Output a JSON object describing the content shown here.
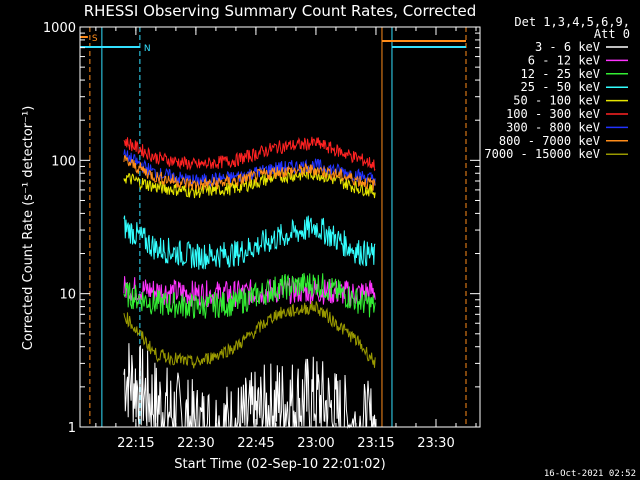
{
  "chart_data": {
    "type": "line",
    "title": "RHESSI Observing Summary Count Rates, Corrected",
    "xlabel": "Start Time (02-Sep-10 22:01:02)",
    "ylabel": "Corrected Count Rate (s⁻¹ detector⁻¹)",
    "yscale": "log",
    "ylim": [
      1,
      1000
    ],
    "xlim": [
      "22:01:02",
      "23:41:00"
    ],
    "x_ticks": [
      "22:15",
      "22:30",
      "22:45",
      "23:00",
      "23:15",
      "23:30"
    ],
    "y_ticks": [
      "1",
      "10",
      "100",
      "1000"
    ],
    "grid": false,
    "legend_placement": "right",
    "legend_header": [
      "Det 1,3,4,5,6,9,",
      "Att 0"
    ],
    "timestamp": "16-Oct-2021 02:52",
    "flags": [
      {
        "label": "S",
        "color": "#ff8c1a",
        "x_start": "22:01:02",
        "x_end": "22:03:00"
      },
      {
        "label": "N",
        "color": "#33e0ff",
        "x_start": "22:01:02",
        "x_end": "22:16:00"
      }
    ],
    "vertical_markers": [
      {
        "x": "22:03:30",
        "color": "#ff8c1a",
        "style": "dashed"
      },
      {
        "x": "22:06:30",
        "color": "#33e0ff",
        "style": "solid"
      },
      {
        "x": "22:16:00",
        "color": "#33e0ff",
        "style": "dashed"
      },
      {
        "x": "23:16:30",
        "color": "#ff8c1a",
        "style": "solid"
      },
      {
        "x": "23:19:00",
        "color": "#33e0ff",
        "style": "solid"
      },
      {
        "x": "23:37:30",
        "color": "#ff8c1a",
        "style": "dashed"
      }
    ],
    "series": [
      {
        "name": "3 - 6 keV",
        "color": "#ffffff",
        "x": [
          "22:12",
          "22:20",
          "22:30",
          "22:40",
          "22:50",
          "23:00",
          "23:10",
          "23:15"
        ],
        "values": [
          2.5,
          1.5,
          1,
          1,
          1.5,
          1.6,
          1,
          1
        ]
      },
      {
        "name": "6 - 12 keV",
        "color": "#ff33ff",
        "x": [
          "22:12",
          "22:20",
          "22:30",
          "22:40",
          "22:50",
          "23:00",
          "23:10",
          "23:15"
        ],
        "values": [
          11,
          10.5,
          10,
          10,
          10.5,
          10.5,
          10,
          10.5
        ]
      },
      {
        "name": "12 - 25 keV",
        "color": "#33ee33",
        "x": [
          "22:12",
          "22:20",
          "22:30",
          "22:40",
          "22:50",
          "23:00",
          "23:10",
          "23:15"
        ],
        "values": [
          10,
          8.5,
          8,
          8.5,
          11,
          12,
          9,
          8
        ]
      },
      {
        "name": "25 - 50 keV",
        "color": "#33ffff",
        "x": [
          "22:12",
          "22:20",
          "22:30",
          "22:40",
          "22:50",
          "23:00",
          "23:10",
          "23:15"
        ],
        "values": [
          32,
          22,
          19,
          20,
          26,
          32,
          21,
          19
        ]
      },
      {
        "name": "50 - 100 keV",
        "color": "#e6e600",
        "x": [
          "22:12",
          "22:20",
          "22:30",
          "22:40",
          "22:50",
          "23:00",
          "23:10",
          "23:15"
        ],
        "values": [
          75,
          63,
          58,
          62,
          75,
          80,
          63,
          58
        ]
      },
      {
        "name": "100 - 300 keV",
        "color": "#ff2222",
        "x": [
          "22:12",
          "22:20",
          "22:30",
          "22:40",
          "22:50",
          "23:00",
          "23:10",
          "23:15"
        ],
        "values": [
          140,
          105,
          92,
          100,
          125,
          135,
          105,
          92
        ]
      },
      {
        "name": "300 - 800 keV",
        "color": "#2233ff",
        "x": [
          "22:12",
          "22:20",
          "22:30",
          "22:40",
          "22:50",
          "23:00",
          "23:10",
          "23:15"
        ],
        "values": [
          110,
          80,
          70,
          75,
          88,
          92,
          78,
          72
        ]
      },
      {
        "name": "800 - 7000 keV",
        "color": "#ff8c1a",
        "x": [
          "22:12",
          "22:20",
          "22:30",
          "22:40",
          "22:50",
          "23:00",
          "23:10",
          "23:15"
        ],
        "values": [
          100,
          75,
          65,
          70,
          82,
          85,
          72,
          65
        ]
      },
      {
        "name": "7000 - 15000 keV",
        "color": "#999900",
        "x": [
          "22:12",
          "22:20",
          "22:30",
          "22:40",
          "22:50",
          "23:00",
          "23:10",
          "23:15"
        ],
        "values": [
          7,
          3.5,
          3,
          4,
          7,
          8,
          4.5,
          3
        ]
      }
    ]
  }
}
